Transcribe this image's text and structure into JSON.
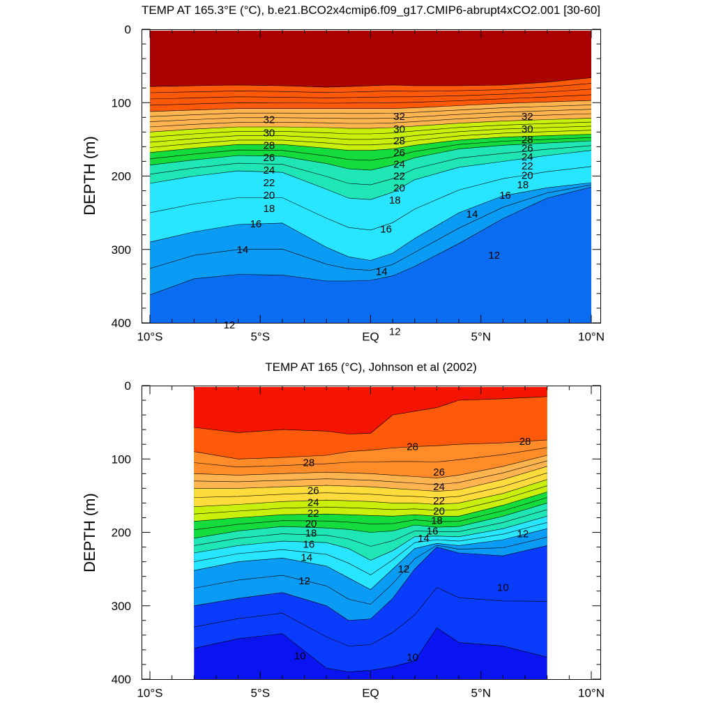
{
  "chart_data": [
    {
      "type": "contour",
      "title": "TEMP AT 165.3°E (°C), b.e21.BCO2x4cmip6.f09_g17.CMIP6-abrupt4xCO2.001 [30-60]",
      "xlabel": "",
      "ylabel": "DEPTH (m)",
      "xlim": [
        -10,
        10
      ],
      "ylim": [
        400,
        0
      ],
      "x_ticks": [
        {
          "v": -10,
          "label": "10°S"
        },
        {
          "v": -5,
          "label": "5°S"
        },
        {
          "v": 0,
          "label": "EQ"
        },
        {
          "v": 5,
          "label": "5°N"
        },
        {
          "v": 10,
          "label": "10°N"
        }
      ],
      "y_ticks": [
        0,
        100,
        200,
        300,
        400
      ],
      "levels": [
        10,
        11,
        12,
        13,
        14,
        15,
        16,
        17,
        18,
        19,
        20,
        21,
        22,
        23,
        24,
        25,
        26,
        27,
        28,
        29,
        30,
        31,
        32
      ],
      "isotherm_depths": {
        "x": [
          -10,
          -8,
          -6,
          -4,
          -2,
          -1,
          0,
          1,
          2,
          4,
          6,
          8,
          10
        ],
        "depths": {
          "12": [
            362,
            340,
            334,
            335,
            343,
            343,
            342,
            336,
            323,
            292,
            258,
            230,
            215
          ],
          "14": [
            290,
            276,
            266,
            264,
            297,
            310,
            315,
            305,
            285,
            250,
            227,
            216,
            209
          ],
          "16": [
            210,
            200,
            193,
            195,
            218,
            230,
            232,
            222,
            205,
            188,
            180,
            172,
            165
          ],
          "18": [
            185,
            178,
            172,
            173,
            183,
            190,
            192,
            185,
            175,
            163,
            158,
            155,
            152
          ],
          "20": [
            168,
            162,
            157,
            157,
            162,
            165,
            165,
            163,
            158,
            151,
            147,
            145,
            143
          ],
          "24": [
            140,
            136,
            133,
            133,
            134,
            135,
            135,
            134,
            132,
            128,
            125,
            123,
            121
          ],
          "28": [
            112,
            110,
            108,
            108,
            108,
            108,
            108,
            108,
            107,
            104,
            101,
            99,
            97
          ],
          "32": [
            78,
            77,
            76,
            77,
            79,
            78,
            77,
            76,
            77,
            77,
            76,
            72,
            66
          ]
        }
      },
      "labels": [
        {
          "x": -4.6,
          "y": 123,
          "text": "32"
        },
        {
          "x": 1.3,
          "y": 119,
          "text": "32"
        },
        {
          "x": 7.1,
          "y": 119,
          "text": "32"
        },
        {
          "x": -4.6,
          "y": 141,
          "text": "30"
        },
        {
          "x": 1.3,
          "y": 136,
          "text": "30"
        },
        {
          "x": 7.1,
          "y": 136,
          "text": "30"
        },
        {
          "x": -4.6,
          "y": 158,
          "text": "28"
        },
        {
          "x": 1.3,
          "y": 152,
          "text": "28"
        },
        {
          "x": 7.1,
          "y": 150,
          "text": "28"
        },
        {
          "x": -4.6,
          "y": 175,
          "text": "26"
        },
        {
          "x": 1.3,
          "y": 168,
          "text": "26"
        },
        {
          "x": 7.1,
          "y": 162,
          "text": "26"
        },
        {
          "x": -4.6,
          "y": 192,
          "text": "24"
        },
        {
          "x": 1.3,
          "y": 184,
          "text": "24"
        },
        {
          "x": 7.1,
          "y": 174,
          "text": "24"
        },
        {
          "x": -4.6,
          "y": 209,
          "text": "22"
        },
        {
          "x": 1.3,
          "y": 200,
          "text": "22"
        },
        {
          "x": 7.1,
          "y": 186,
          "text": "22"
        },
        {
          "x": -4.6,
          "y": 226,
          "text": "20"
        },
        {
          "x": 1.3,
          "y": 216,
          "text": "20"
        },
        {
          "x": 7.1,
          "y": 199,
          "text": "20"
        },
        {
          "x": -4.6,
          "y": 244,
          "text": "18"
        },
        {
          "x": 1.1,
          "y": 233,
          "text": "18"
        },
        {
          "x": 6.9,
          "y": 212,
          "text": "18"
        },
        {
          "x": -5.2,
          "y": 265,
          "text": "16"
        },
        {
          "x": 0.7,
          "y": 272,
          "text": "16"
        },
        {
          "x": 6.1,
          "y": 226,
          "text": "16"
        },
        {
          "x": -5.8,
          "y": 300,
          "text": "14"
        },
        {
          "x": 0.5,
          "y": 330,
          "text": "14"
        },
        {
          "x": 4.6,
          "y": 252,
          "text": "14"
        },
        {
          "x": -6.4,
          "y": 403,
          "text": "12"
        },
        {
          "x": 1.1,
          "y": 412,
          "text": "12"
        },
        {
          "x": 5.6,
          "y": 308,
          "text": "12"
        }
      ]
    },
    {
      "type": "contour",
      "title": "TEMP AT 165 (°C), Johnson et al (2002)",
      "xlabel": "",
      "ylabel": "DEPTH (m)",
      "xlim": [
        -10,
        10
      ],
      "ylim": [
        400,
        0
      ],
      "data_x_range": [
        -8,
        8
      ],
      "x_ticks": [
        {
          "v": -10,
          "label": "10°S"
        },
        {
          "v": -5,
          "label": "5°S"
        },
        {
          "v": 0,
          "label": "EQ"
        },
        {
          "v": 5,
          "label": "5°N"
        },
        {
          "v": 10,
          "label": "10°N"
        }
      ],
      "y_ticks": [
        0,
        100,
        200,
        300,
        400
      ],
      "levels": [
        9,
        10,
        11,
        12,
        13,
        14,
        15,
        16,
        17,
        18,
        19,
        20,
        21,
        22,
        23,
        24,
        25,
        26,
        27,
        28,
        29
      ],
      "isotherm_depths": {
        "x": [
          -8,
          -6,
          -4,
          -2,
          -1,
          0,
          1,
          2,
          3,
          4,
          6,
          8
        ],
        "depths": {
          "10": [
            358,
            345,
            338,
            385,
            390,
            388,
            383,
            375,
            330,
            350,
            355,
            370
          ],
          "12": [
            300,
            290,
            282,
            300,
            320,
            318,
            290,
            250,
            220,
            228,
            232,
            218
          ],
          "14": [
            252,
            240,
            235,
            246,
            262,
            278,
            250,
            222,
            215,
            218,
            210,
            195
          ],
          "16": [
            228,
            218,
            212,
            214,
            222,
            238,
            225,
            206,
            205,
            206,
            195,
            178
          ],
          "18": [
            208,
            198,
            192,
            194,
            196,
            200,
            198,
            190,
            193,
            192,
            178,
            160
          ],
          "20": [
            185,
            180,
            176,
            175,
            176,
            177,
            178,
            176,
            178,
            178,
            163,
            145
          ],
          "22": [
            165,
            162,
            158,
            156,
            157,
            158,
            160,
            160,
            162,
            160,
            147,
            128
          ],
          "24": [
            140,
            140,
            138,
            136,
            137,
            138,
            140,
            142,
            144,
            142,
            128,
            110
          ],
          "26": [
            120,
            122,
            120,
            118,
            119,
            120,
            122,
            124,
            126,
            122,
            110,
            95
          ],
          "28": [
            90,
            100,
            98,
            95,
            90,
            88,
            85,
            83,
            82,
            80,
            78,
            74
          ],
          "29": [
            57,
            64,
            60,
            62,
            66,
            65,
            40,
            35,
            30,
            20,
            18,
            15
          ]
        }
      },
      "labels": [
        {
          "x": 1.9,
          "y": 83,
          "text": "28"
        },
        {
          "x": 7.0,
          "y": 76,
          "text": "28"
        },
        {
          "x": -2.8,
          "y": 105,
          "text": "28"
        },
        {
          "x": -2.6,
          "y": 143,
          "text": "26"
        },
        {
          "x": -2.6,
          "y": 159,
          "text": "24"
        },
        {
          "x": -2.6,
          "y": 174,
          "text": "22"
        },
        {
          "x": -2.7,
          "y": 188,
          "text": "20"
        },
        {
          "x": -2.7,
          "y": 201,
          "text": "18"
        },
        {
          "x": -2.8,
          "y": 216,
          "text": "16"
        },
        {
          "x": -2.9,
          "y": 234,
          "text": "14"
        },
        {
          "x": -3.0,
          "y": 266,
          "text": "12"
        },
        {
          "x": 3.1,
          "y": 118,
          "text": "26"
        },
        {
          "x": 3.1,
          "y": 138,
          "text": "24"
        },
        {
          "x": 3.1,
          "y": 157,
          "text": "22"
        },
        {
          "x": 3.1,
          "y": 171,
          "text": "20"
        },
        {
          "x": 3.0,
          "y": 184,
          "text": "18"
        },
        {
          "x": 2.8,
          "y": 198,
          "text": "16"
        },
        {
          "x": 2.4,
          "y": 208,
          "text": "14"
        },
        {
          "x": 1.5,
          "y": 250,
          "text": "12"
        },
        {
          "x": 6.9,
          "y": 202,
          "text": "12"
        },
        {
          "x": -3.2,
          "y": 368,
          "text": "10"
        },
        {
          "x": 1.9,
          "y": 370,
          "text": "10"
        },
        {
          "x": 6.0,
          "y": 275,
          "text": "10"
        }
      ]
    }
  ]
}
